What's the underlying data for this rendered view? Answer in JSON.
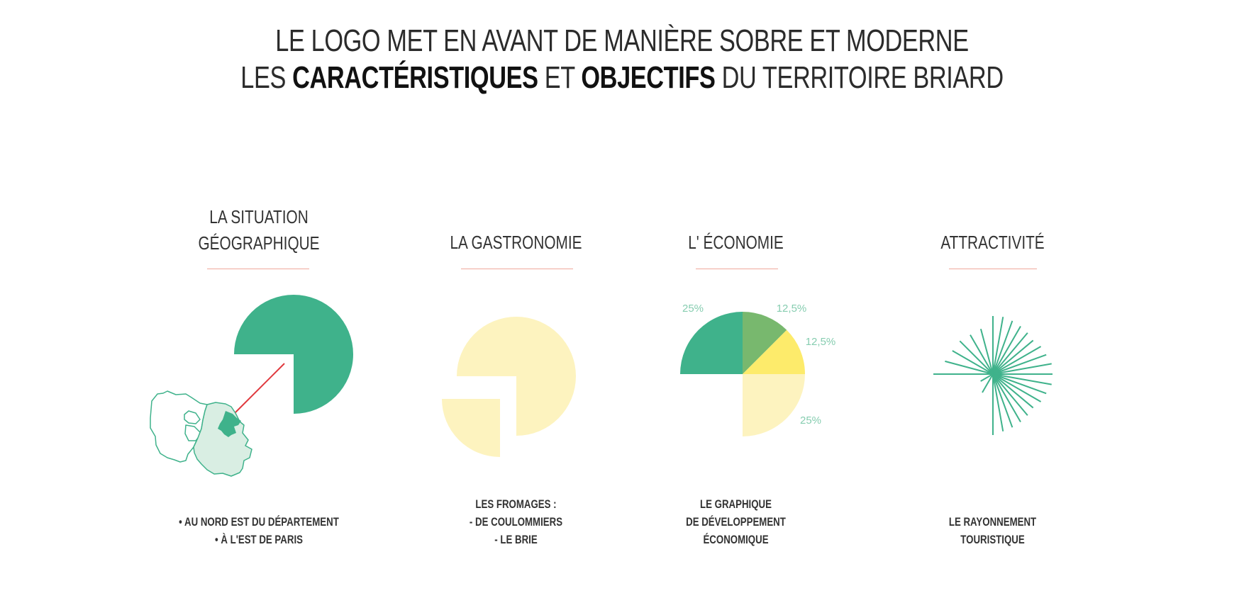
{
  "header": {
    "line1": "LE LOGO MET EN AVANT DE MANIÈRE SOBRE ET MODERNE",
    "line2_a": "LES ",
    "line2_b": "CARACTÉRISTIQUES",
    "line2_c": " ET ",
    "line2_d": "OBJECTIFS",
    "line2_e": " DU TERRITOIRE BRIARD"
  },
  "columns": [
    {
      "title_1": "LA SITUATION",
      "title_2": "GÉOGRAPHIQUE",
      "caption_1": "• AU NORD EST DU DÉPARTEMENT",
      "caption_2": "• À L'EST DE PARIS"
    },
    {
      "title": "LA GASTRONOMIE",
      "caption_1": "LES FROMAGES :",
      "caption_2": "- DE COULOMMIERS",
      "caption_3": "- LE BRIE"
    },
    {
      "title": "L' ÉCONOMIE",
      "caption_1": "LE GRAPHIQUE",
      "caption_2": "DE DÉVELOPPEMENT",
      "caption_3": "ÉCONOMIQUE"
    },
    {
      "title": "ATTRACTIVITÉ",
      "caption_1": "LE RAYONNEMENT",
      "caption_2": "TOURISTIQUE"
    }
  ],
  "chart_data": {
    "type": "pie",
    "categories": [
      "25%",
      "12,5%",
      "12,5%",
      "25%"
    ],
    "values": [
      25,
      12.5,
      12.5,
      25
    ],
    "colors": [
      "#3fb28b",
      "#78b86e",
      "#fdeb6b",
      "#fdf3bf"
    ]
  },
  "colors": {
    "green": "#3fb28b",
    "light_green": "#d9eee3",
    "cream": "#fdf3bf",
    "red_line": "#e0393e",
    "rule": "#f0a79b"
  }
}
